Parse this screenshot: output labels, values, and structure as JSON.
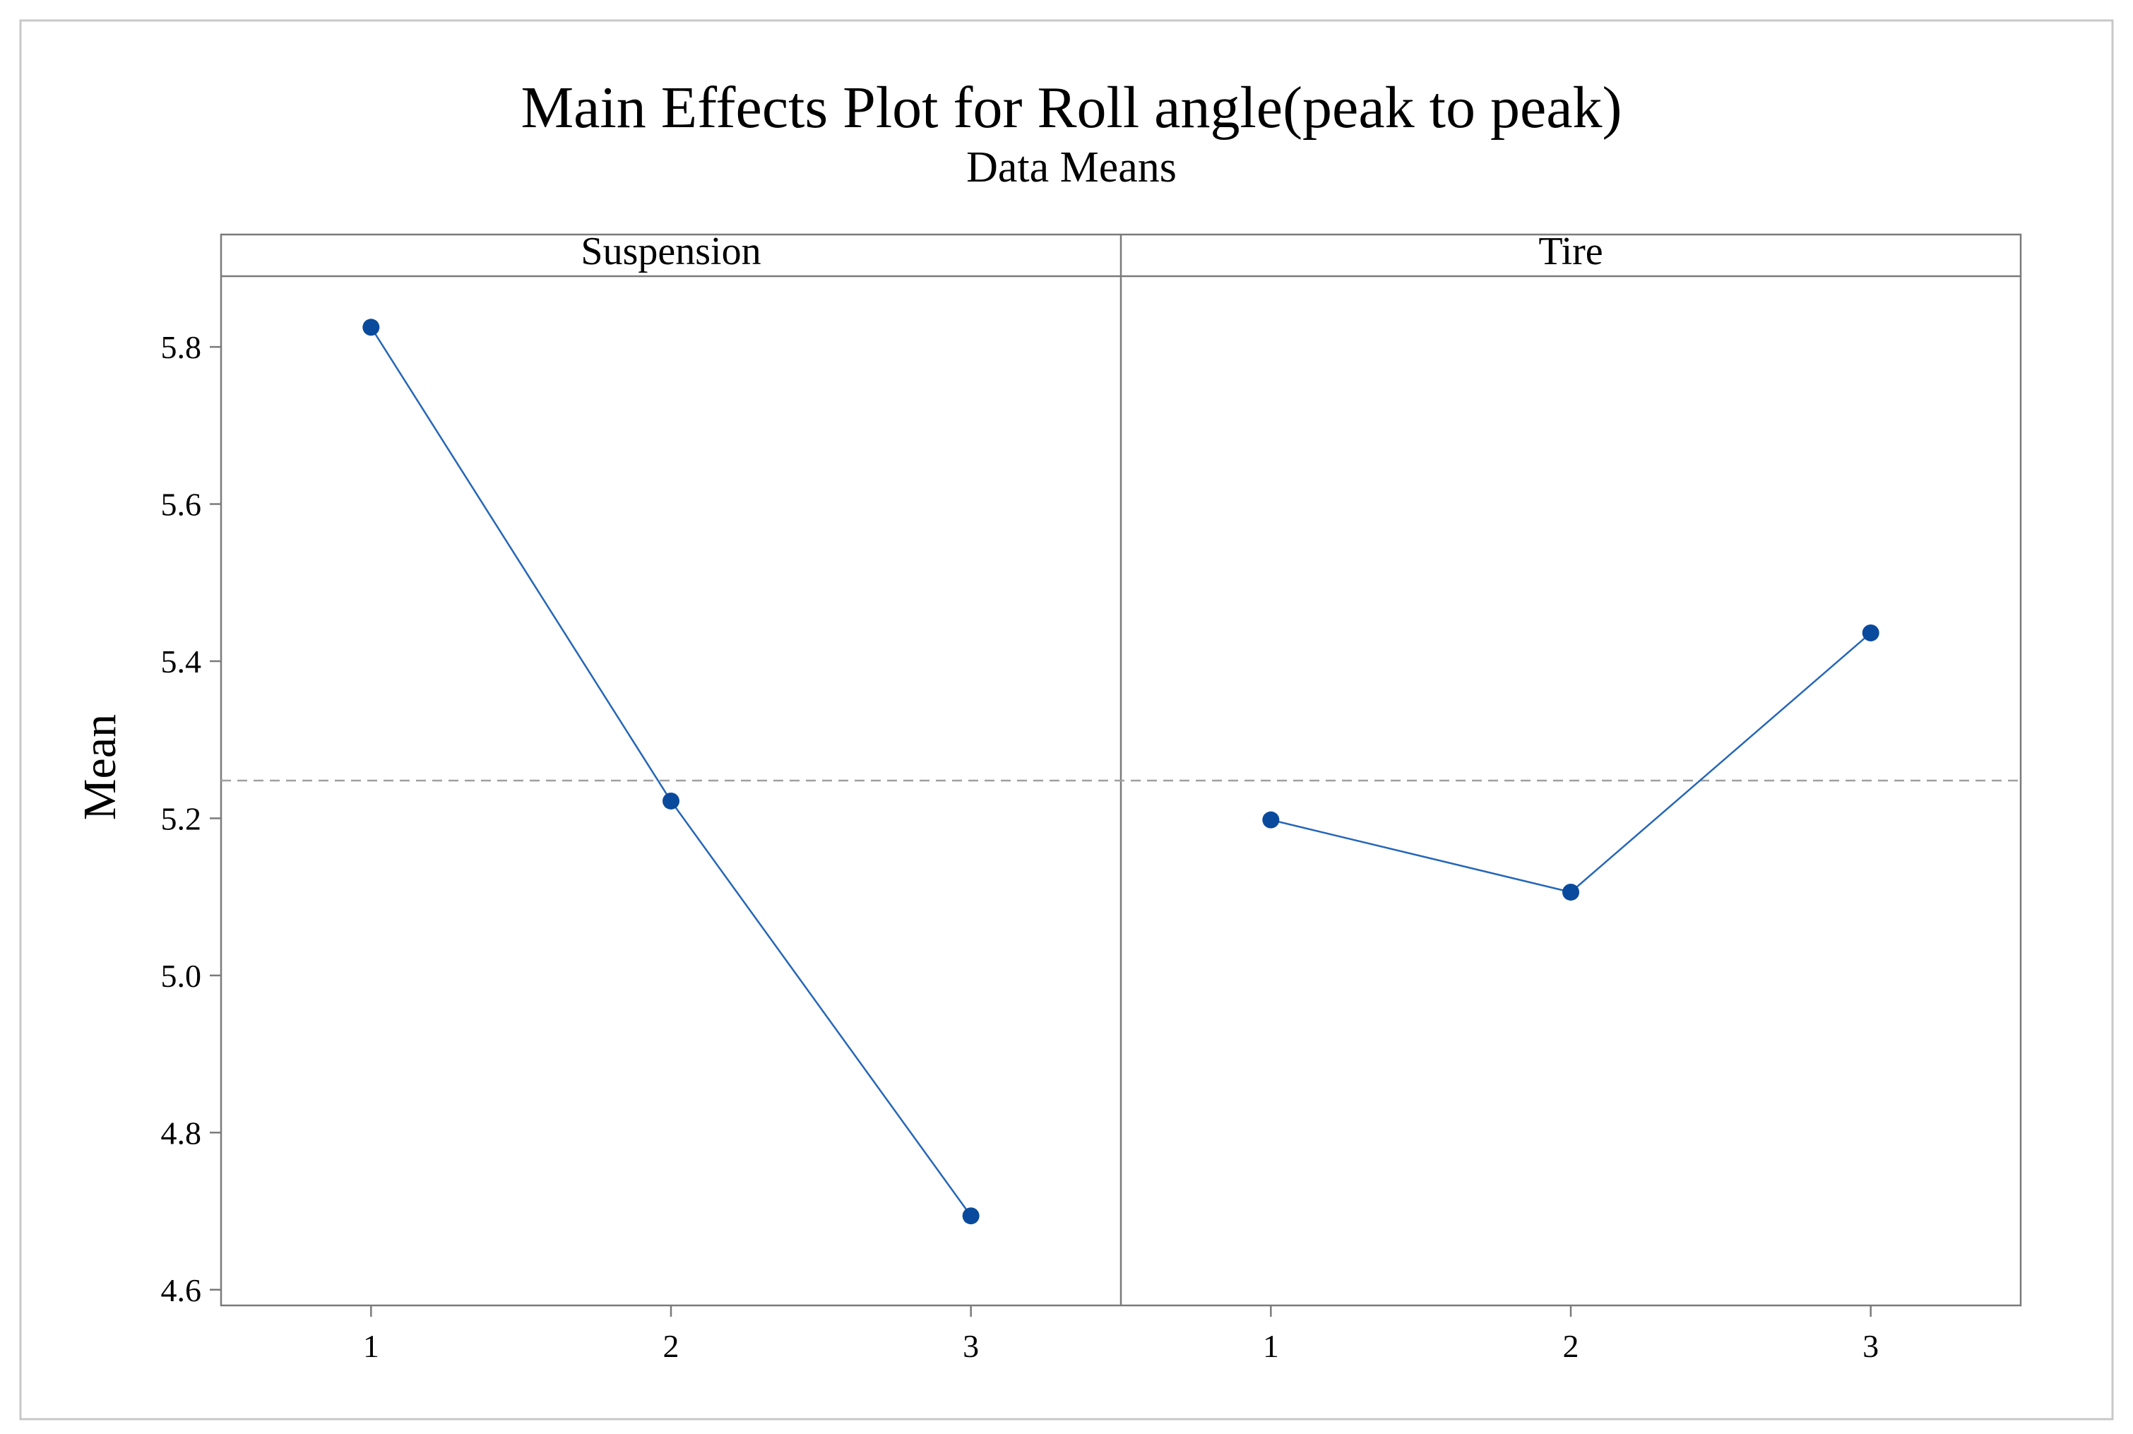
{
  "chart_data": {
    "type": "line",
    "title": "Main Effects Plot for Roll angle(peak to peak)",
    "subtitle": "Data Means",
    "ylabel": "Mean",
    "ylim": [
      4.58,
      5.89
    ],
    "yticks": [
      "4.6",
      "4.8",
      "5.0",
      "5.2",
      "5.4",
      "5.6",
      "5.8"
    ],
    "ytick_values": [
      4.6,
      4.8,
      5.0,
      5.2,
      5.4,
      5.6,
      5.8
    ],
    "reference_line": {
      "value": 5.248,
      "style": "dashed"
    },
    "panels": [
      {
        "name": "Suspension",
        "categories": [
          "1",
          "2",
          "3"
        ],
        "values": [
          5.825,
          5.222,
          4.694
        ]
      },
      {
        "name": "Tire",
        "categories": [
          "1",
          "2",
          "3"
        ],
        "values": [
          5.198,
          5.106,
          5.436
        ]
      }
    ],
    "colors": {
      "line": "#2566b8",
      "marker": "#0a4a9c",
      "axis": "#7a7a7a",
      "reference": "#a0a0a0",
      "frame": "#c8c8c8"
    }
  }
}
